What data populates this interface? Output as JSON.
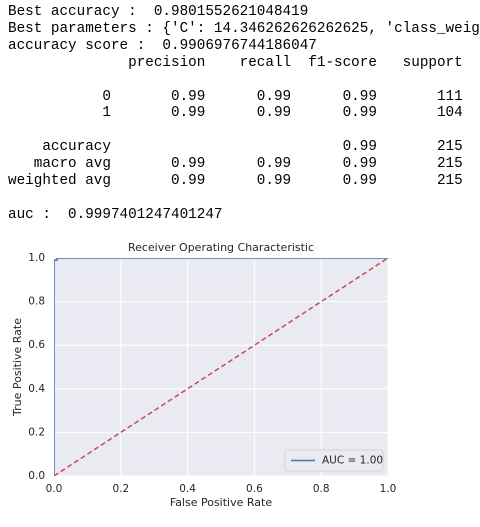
{
  "output": {
    "blocks": [
      [
        "Best accuracy :  0.9801552621048419",
        "Best parameters : {'C': 14.346262626262625, 'class_weig",
        "accuracy score :  0.9906976744186047",
        "              precision    recall  f1-score   support"
      ],
      [
        "           0       0.99      0.99      0.99       111",
        "           1       0.99      0.99      0.99       104"
      ],
      [
        "    accuracy                           0.99       215",
        "   macro avg       0.99      0.99      0.99       215",
        "weighted avg       0.99      0.99      0.99       215"
      ],
      [
        "auc :  0.9997401247401247"
      ]
    ]
  },
  "chart_data": {
    "type": "line",
    "title": "Receiver Operating Characteristic",
    "x_label": "False Positive Rate",
    "y_label": "True Positive Rate",
    "xlim": [
      0,
      1
    ],
    "ylim": [
      0,
      1
    ],
    "xticks": [
      {
        "value": 0,
        "label": "0.0"
      },
      {
        "value": 0.2,
        "label": "0.2"
      },
      {
        "value": 0.4,
        "label": "0.4"
      },
      {
        "value": 0.6,
        "label": "0.6"
      },
      {
        "value": 0.8,
        "label": "0.8"
      },
      {
        "value": 1,
        "label": "1.0"
      }
    ],
    "yticks": [
      {
        "value": 0,
        "label": "0.0"
      },
      {
        "value": 0.2,
        "label": "0.2"
      },
      {
        "value": 0.4,
        "label": "0.4"
      },
      {
        "value": 0.6,
        "label": "0.6"
      },
      {
        "value": 0.8,
        "label": "0.8"
      },
      {
        "value": 1,
        "label": "1.0"
      }
    ],
    "grid": true,
    "legend": "lower right",
    "series": [
      {
        "name": "AUC = 1.00",
        "color": "#4c72b0",
        "x": [
          0,
          0,
          0.009,
          0.009,
          1
        ],
        "values": [
          0,
          0.99,
          0.99,
          1,
          1
        ]
      },
      {
        "color": "#c44e52",
        "dashed": true,
        "x": [
          0,
          1
        ],
        "values": [
          0,
          1
        ]
      }
    ]
  }
}
